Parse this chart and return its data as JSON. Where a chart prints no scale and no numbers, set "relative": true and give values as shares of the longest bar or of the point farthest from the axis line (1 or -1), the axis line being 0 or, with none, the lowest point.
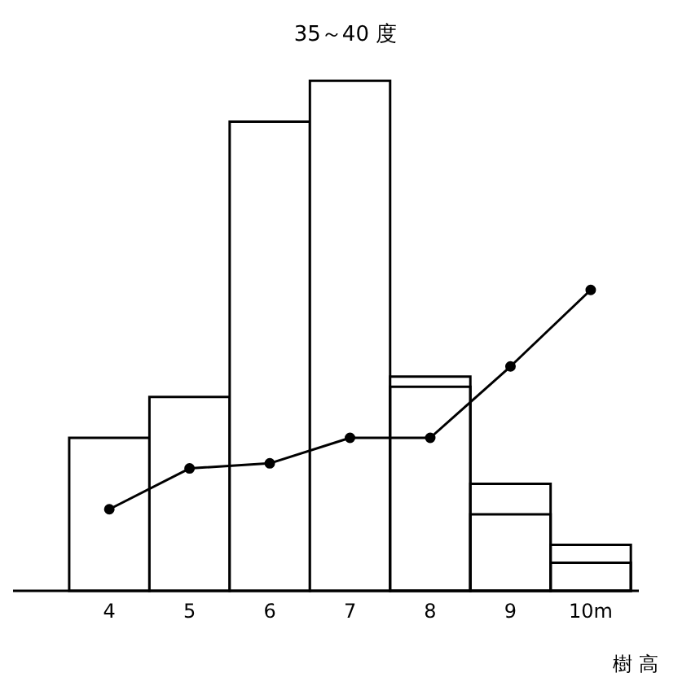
{
  "chart_data": {
    "type": "histogram",
    "title": "35～40 度",
    "xlabel": "樹 高",
    "relative": true,
    "bins": [
      3.5,
      4.5,
      5.5,
      6.5,
      7.5,
      8.5,
      9.5,
      10.5
    ],
    "series": [
      {
        "color": "#000000",
        "values": [
          0.3,
          0.38,
          0.92,
          1,
          0.42,
          0.21,
          0.09
        ]
      },
      {
        "color": "#000000",
        "values": [
          null,
          null,
          null,
          null,
          0.4,
          0.15,
          0.055
        ]
      },
      {
        "type": "line",
        "color": "#000000",
        "x": [
          4,
          5,
          6,
          7,
          8,
          9,
          10
        ],
        "values": [
          0.16,
          0.24,
          0.25,
          0.3,
          0.3,
          0.44,
          0.59
        ]
      }
    ],
    "xlim": [
      2.8,
      10.6
    ],
    "xticks": [
      4,
      5,
      6,
      7,
      8,
      9,
      {
        "value": 10,
        "label": "10m"
      }
    ],
    "marker": "circle",
    "line_style": "solid",
    "grid": false,
    "legend": false
  }
}
